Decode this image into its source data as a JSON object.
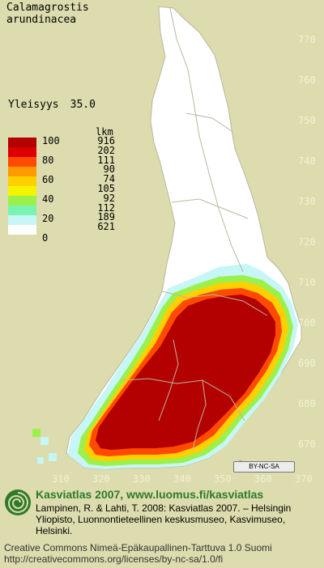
{
  "species": {
    "line1": "Calamagrostis",
    "line2": "arundinacea"
  },
  "metric": {
    "label": "Yleisyys",
    "value": "35.0"
  },
  "legend": {
    "count_title": "lkm",
    "scale_labels": [
      "100",
      "80",
      "60",
      "40",
      "20",
      "0"
    ],
    "counts": [
      "916",
      "202",
      "111",
      "90",
      "74",
      "105",
      "92",
      "112",
      "189",
      "621"
    ],
    "colors": [
      "#b30000",
      "#dd0000",
      "#ff4a00",
      "#ff9a00",
      "#ffcf00",
      "#f4f400",
      "#9cf04c",
      "#78f3b0",
      "#c6f6f6",
      "#ffffff"
    ]
  },
  "map": {
    "lat_labels": [
      "770",
      "760",
      "750",
      "740",
      "730",
      "720",
      "710",
      "700",
      "690",
      "680",
      "670"
    ],
    "lon_labels": [
      "310",
      "320",
      "330",
      "340",
      "350",
      "360",
      "370"
    ],
    "colors": {
      "background": "#dcdcae",
      "country": "#ffffff",
      "land_border": "#b8b8a0",
      "main": "#b30000",
      "band1": "#ff4a00",
      "band2": "#ffcf00",
      "band3": "#9cf04c",
      "band4": "#c6f6f6"
    }
  },
  "license_badge": "BY-NC-SA",
  "footer": {
    "title": "Kasviatlas 2007, www.luomus.fi/kasviatlas",
    "citation": "Lampinen, R. & Lahti, T. 2008: Kasviatlas 2007. – Helsingin Yliopisto, Luonnontieteellinen keskusmuseo, Kasvimuseo, Helsinki.",
    "license": "Creative Commons Nimeä-Epäkaupallinen-Tarttuva 1.0 Suomi http://creativecommons.org/licenses/by-nc-sa/1.0/fi"
  }
}
